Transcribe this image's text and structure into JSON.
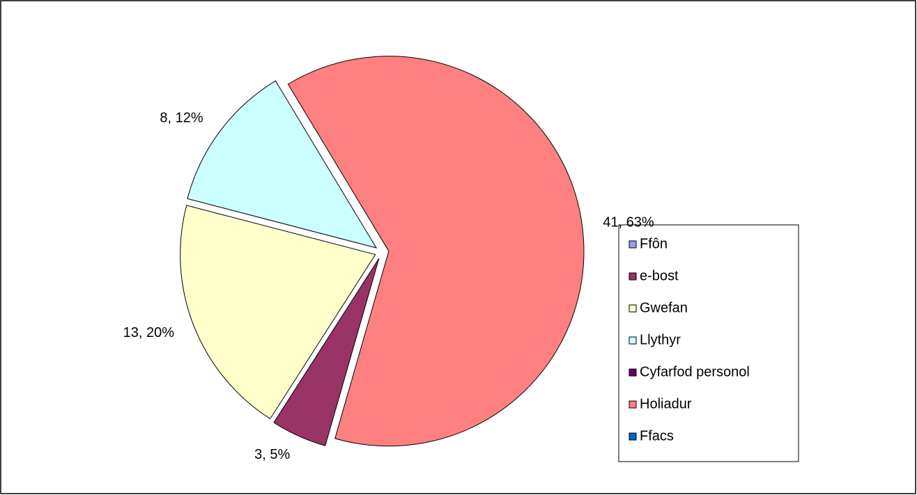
{
  "chart_data": {
    "type": "pie",
    "categories": [
      "Ffôn",
      "e-bost",
      "Gwefan",
      "Llythyr",
      "Cyfarfod personol",
      "Holiadur",
      "Ffacs"
    ],
    "values": [
      0,
      3,
      13,
      8,
      0,
      41,
      0
    ],
    "value_labels": [
      null,
      "3, 5%",
      "13, 20%",
      "8, 12%",
      null,
      "41, 63%",
      null
    ],
    "colors": [
      "#9999ff",
      "#993366",
      "#ffffcc",
      "#ccffff",
      "#660066",
      "#ff8080",
      "#0066cc"
    ],
    "legend": "right"
  }
}
